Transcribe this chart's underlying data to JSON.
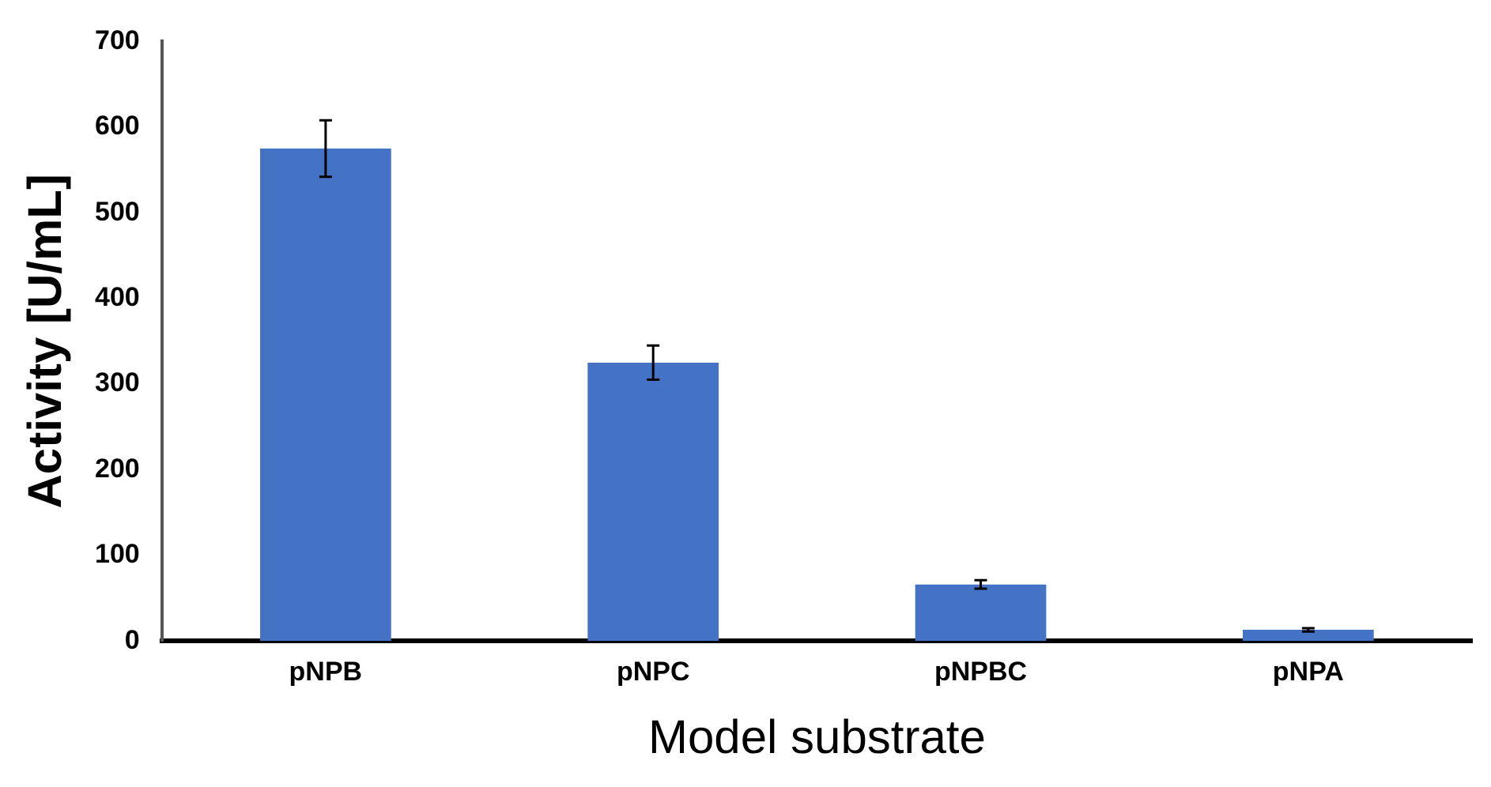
{
  "chart_data": {
    "type": "bar",
    "xlabel": "Model substrate",
    "ylabel": "Activity [U/mL]",
    "categories": [
      "pNPB",
      "pNPC",
      "pNPBC",
      "pNPA"
    ],
    "values": [
      575,
      325,
      66,
      13
    ],
    "errors": [
      33,
      20,
      5,
      2
    ],
    "color": "#4472c4",
    "ylim": [
      0,
      700
    ],
    "yticks": [
      0,
      100,
      200,
      300,
      400,
      500,
      600,
      700
    ],
    "grid": false,
    "legend": false
  }
}
